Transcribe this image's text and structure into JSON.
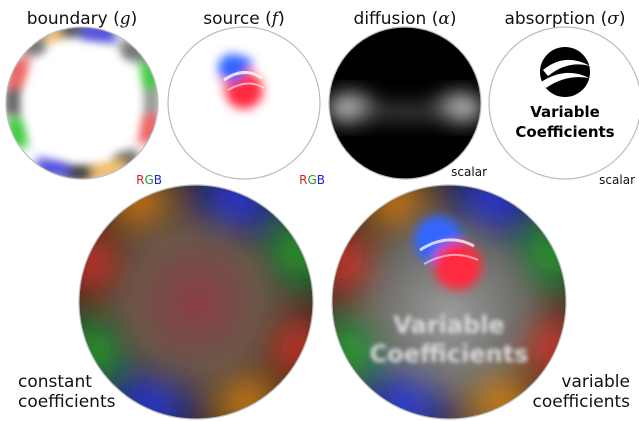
{
  "panels": {
    "boundary": {
      "label": "boundary",
      "symbol": "g",
      "tag_r": "R",
      "tag_g": "G",
      "tag_b": "B"
    },
    "source": {
      "label": "source",
      "symbol": "f",
      "tag_r": "R",
      "tag_g": "G",
      "tag_b": "B"
    },
    "diffusion": {
      "label": "diffusion",
      "symbol": "α",
      "tag": "scalar"
    },
    "absorption": {
      "label": "absorption",
      "symbol": "σ",
      "tag": "scalar",
      "logo_line1": "Variable",
      "logo_line2": "Coefficients"
    }
  },
  "results": {
    "constant": {
      "line1": "constant",
      "line2": "coefficients"
    },
    "variable": {
      "line1": "variable",
      "line2": "coefficients",
      "ghost_line1": "Variable",
      "ghost_line2": "Coefficients"
    }
  },
  "colors": {
    "red": "#ff2020",
    "green": "#22cc22",
    "blue": "#2233ff",
    "yellow": "#ffbb33",
    "orange": "#ff8800",
    "border": "#bbbbbb"
  }
}
